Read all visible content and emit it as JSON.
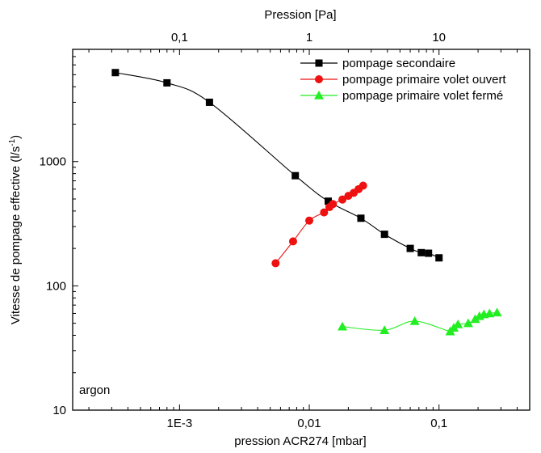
{
  "chart_data": {
    "type": "scatter",
    "xscale": "log",
    "yscale": "log",
    "xlim": [
      0.00015,
      0.5
    ],
    "ylim": [
      10,
      8000
    ],
    "xlabel": "pression ACR274 [mbar]",
    "ylabel": "Vitesse de pompage effective (l/s",
    "ylabel_sup": "-1",
    "ylabel_close": ")",
    "top_axis_label": "Pression [Pa]",
    "x_ticks": [
      {
        "value": 0.001,
        "label": "1E-3"
      },
      {
        "value": 0.01,
        "label": "0,01"
      },
      {
        "value": 0.1,
        "label": "0,1"
      }
    ],
    "top_ticks": [
      {
        "value": 0.001,
        "label": "0,1"
      },
      {
        "value": 0.01,
        "label": "1"
      },
      {
        "value": 0.1,
        "label": "10"
      }
    ],
    "y_ticks": [
      {
        "value": 10,
        "label": "10"
      },
      {
        "value": 100,
        "label": "100"
      },
      {
        "value": 1000,
        "label": "1000"
      }
    ],
    "annotation": "argon",
    "legend_position": "top-right",
    "series": [
      {
        "name": "pompage secondaire",
        "color": "#000000",
        "marker": "square",
        "x": [
          0.00032,
          0.0008,
          0.0017,
          0.0078,
          0.014,
          0.025,
          0.038,
          0.06,
          0.073,
          0.083,
          0.1
        ],
        "y": [
          5200,
          4300,
          3000,
          770,
          480,
          350,
          260,
          200,
          185,
          183,
          168
        ]
      },
      {
        "name": "pompage primaire volet ouvert",
        "color": "#ee1111",
        "marker": "circle",
        "x": [
          0.0055,
          0.0075,
          0.01,
          0.013,
          0.0143,
          0.0152,
          0.018,
          0.02,
          0.022,
          0.024,
          0.026
        ],
        "y": [
          152,
          228,
          335,
          390,
          430,
          455,
          495,
          530,
          560,
          600,
          640
        ]
      },
      {
        "name": "pompage primaire volet fermé",
        "color": "#22ee22",
        "marker": "triangle",
        "x": [
          0.018,
          0.038,
          0.065,
          0.122,
          0.13,
          0.14,
          0.168,
          0.19,
          0.205,
          0.222,
          0.245,
          0.28
        ],
        "y": [
          47,
          44,
          52,
          43,
          46,
          49,
          50,
          54,
          57,
          59,
          60,
          61
        ]
      }
    ]
  }
}
